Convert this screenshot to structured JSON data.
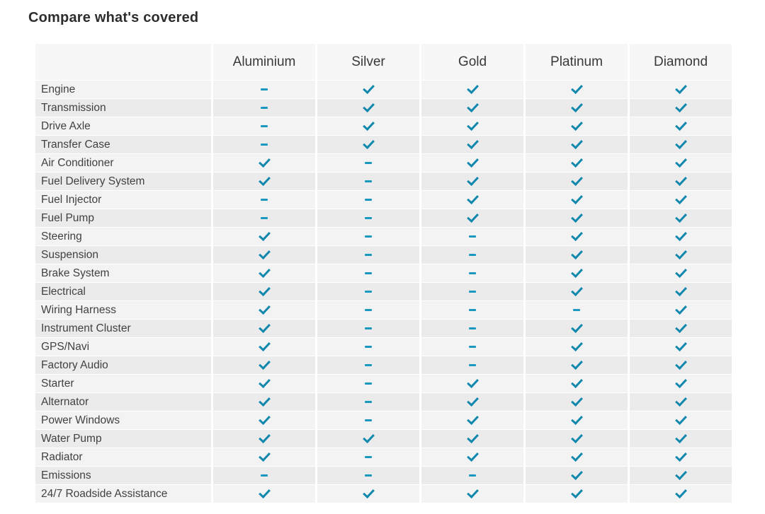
{
  "page": {
    "title": "Compare what's covered"
  },
  "colors": {
    "accent_check": "#1088ad",
    "accent_dash": "#1b98c0",
    "header_bg": "#f7f7f7",
    "row_odd_bg": "#f3f3f3",
    "row_even_bg": "#ebebeb",
    "title_text": "#2d2d2d",
    "body_text": "#414141"
  },
  "icons": {
    "check": "check-icon",
    "dash": "dash-icon"
  },
  "table": {
    "columns": [
      "Aluminium",
      "Silver",
      "Gold",
      "Platinum",
      "Diamond"
    ],
    "rows": [
      {
        "label": "Engine",
        "values": [
          "dash",
          "check",
          "check",
          "check",
          "check"
        ]
      },
      {
        "label": "Transmission",
        "values": [
          "dash",
          "check",
          "check",
          "check",
          "check"
        ]
      },
      {
        "label": "Drive Axle",
        "values": [
          "dash",
          "check",
          "check",
          "check",
          "check"
        ]
      },
      {
        "label": "Transfer Case",
        "values": [
          "dash",
          "check",
          "check",
          "check",
          "check"
        ]
      },
      {
        "label": "Air Conditioner",
        "values": [
          "check",
          "dash",
          "check",
          "check",
          "check"
        ]
      },
      {
        "label": "Fuel Delivery System",
        "values": [
          "check",
          "dash",
          "check",
          "check",
          "check"
        ]
      },
      {
        "label": "Fuel Injector",
        "values": [
          "dash",
          "dash",
          "check",
          "check",
          "check"
        ]
      },
      {
        "label": "Fuel Pump",
        "values": [
          "dash",
          "dash",
          "check",
          "check",
          "check"
        ]
      },
      {
        "label": "Steering",
        "values": [
          "check",
          "dash",
          "dash",
          "check",
          "check"
        ]
      },
      {
        "label": "Suspension",
        "values": [
          "check",
          "dash",
          "dash",
          "check",
          "check"
        ]
      },
      {
        "label": "Brake System",
        "values": [
          "check",
          "dash",
          "dash",
          "check",
          "check"
        ]
      },
      {
        "label": "Electrical",
        "values": [
          "check",
          "dash",
          "dash",
          "check",
          "check"
        ]
      },
      {
        "label": "Wiring Harness",
        "values": [
          "check",
          "dash",
          "dash",
          "dash",
          "check"
        ]
      },
      {
        "label": "Instrument Cluster",
        "values": [
          "check",
          "dash",
          "dash",
          "check",
          "check"
        ]
      },
      {
        "label": "GPS/Navi",
        "values": [
          "check",
          "dash",
          "dash",
          "check",
          "check"
        ]
      },
      {
        "label": "Factory Audio",
        "values": [
          "check",
          "dash",
          "dash",
          "check",
          "check"
        ]
      },
      {
        "label": "Starter",
        "values": [
          "check",
          "dash",
          "check",
          "check",
          "check"
        ]
      },
      {
        "label": "Alternator",
        "values": [
          "check",
          "dash",
          "check",
          "check",
          "check"
        ]
      },
      {
        "label": "Power Windows",
        "values": [
          "check",
          "dash",
          "check",
          "check",
          "check"
        ]
      },
      {
        "label": "Water Pump",
        "values": [
          "check",
          "check",
          "check",
          "check",
          "check"
        ]
      },
      {
        "label": "Radiator",
        "values": [
          "check",
          "dash",
          "check",
          "check",
          "check"
        ]
      },
      {
        "label": "Emissions",
        "values": [
          "dash",
          "dash",
          "dash",
          "check",
          "check"
        ]
      },
      {
        "label": "24/7 Roadside Assistance",
        "values": [
          "check",
          "check",
          "check",
          "check",
          "check"
        ]
      }
    ]
  }
}
